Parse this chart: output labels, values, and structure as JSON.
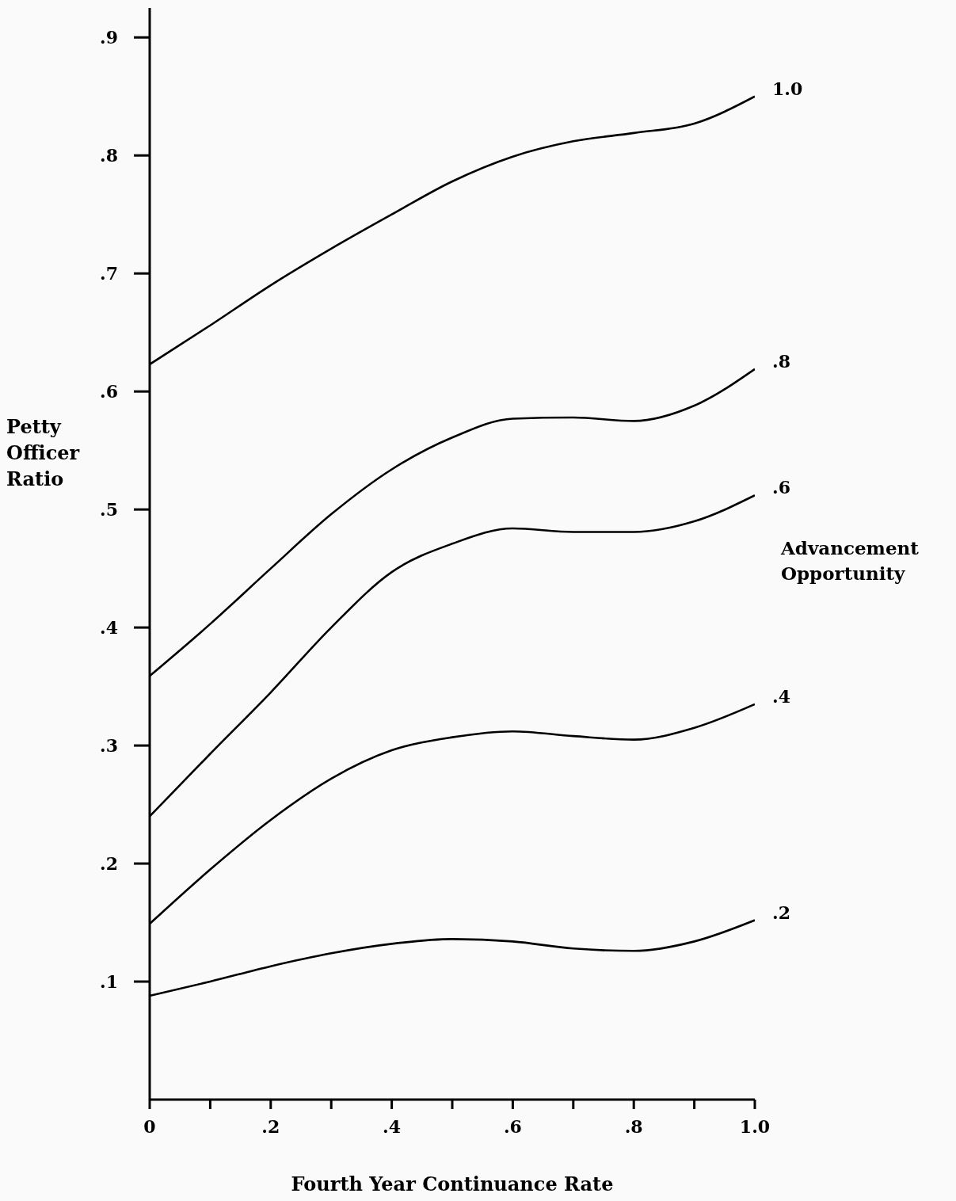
{
  "chart_data": {
    "type": "line",
    "xlabel": "Fourth Year Continuance Rate",
    "ylabel": "Petty Officer Ratio",
    "legend_title": "Advancement Opportunity",
    "x": [
      0,
      0.1,
      0.2,
      0.3,
      0.4,
      0.5,
      0.6,
      0.7,
      0.8,
      0.9,
      1
    ],
    "series": [
      {
        "name": "1.0",
        "color": "#000000",
        "values": [
          0.623,
          0.656,
          0.69,
          0.721,
          0.75,
          0.778,
          0.799,
          0.812,
          0.819,
          0.827,
          0.85
        ]
      },
      {
        "name": ".8",
        "color": "#000000",
        "values": [
          0.359,
          0.403,
          0.45,
          0.496,
          0.534,
          0.561,
          0.577,
          0.578,
          0.575,
          0.588,
          0.619
        ]
      },
      {
        "name": ".6",
        "color": "#000000",
        "values": [
          0.24,
          0.293,
          0.345,
          0.4,
          0.447,
          0.471,
          0.484,
          0.481,
          0.481,
          0.49,
          0.512
        ]
      },
      {
        "name": ".4",
        "color": "#000000",
        "values": [
          0.149,
          0.195,
          0.237,
          0.272,
          0.296,
          0.307,
          0.312,
          0.308,
          0.305,
          0.315,
          0.335
        ]
      },
      {
        "name": ".2",
        "color": "#000000",
        "values": [
          0.088,
          0.1,
          0.113,
          0.124,
          0.132,
          0.136,
          0.134,
          0.128,
          0.126,
          0.134,
          0.152
        ]
      }
    ],
    "xlim": [
      0,
      1
    ],
    "xticks": [
      0,
      {
        "value": 0.1,
        "label": null
      },
      {
        "value": 0.2,
        "label": ".2"
      },
      {
        "value": 0.3,
        "label": null
      },
      {
        "value": 0.4,
        "label": ".4"
      },
      {
        "value": 0.5,
        "label": null
      },
      {
        "value": 0.6,
        "label": ".6"
      },
      {
        "value": 0.7,
        "label": null
      },
      {
        "value": 0.8,
        "label": ".8"
      },
      {
        "value": 0.9,
        "label": null
      },
      {
        "value": 1,
        "label": "1.0"
      }
    ],
    "ylim": [
      0,
      0.925
    ],
    "yticks": [
      {
        "value": 0.1,
        "label": ".1"
      },
      {
        "value": 0.2,
        "label": ".2"
      },
      {
        "value": 0.3,
        "label": ".3"
      },
      {
        "value": 0.4,
        "label": ".4"
      },
      {
        "value": 0.5,
        "label": ".5"
      },
      {
        "value": 0.6,
        "label": ".6"
      },
      {
        "value": 0.7,
        "label": ".7"
      },
      {
        "value": 0.8,
        "label": ".8"
      },
      {
        "value": 0.9,
        "label": ".9"
      }
    ],
    "marker": "none",
    "line_style": "solid"
  }
}
